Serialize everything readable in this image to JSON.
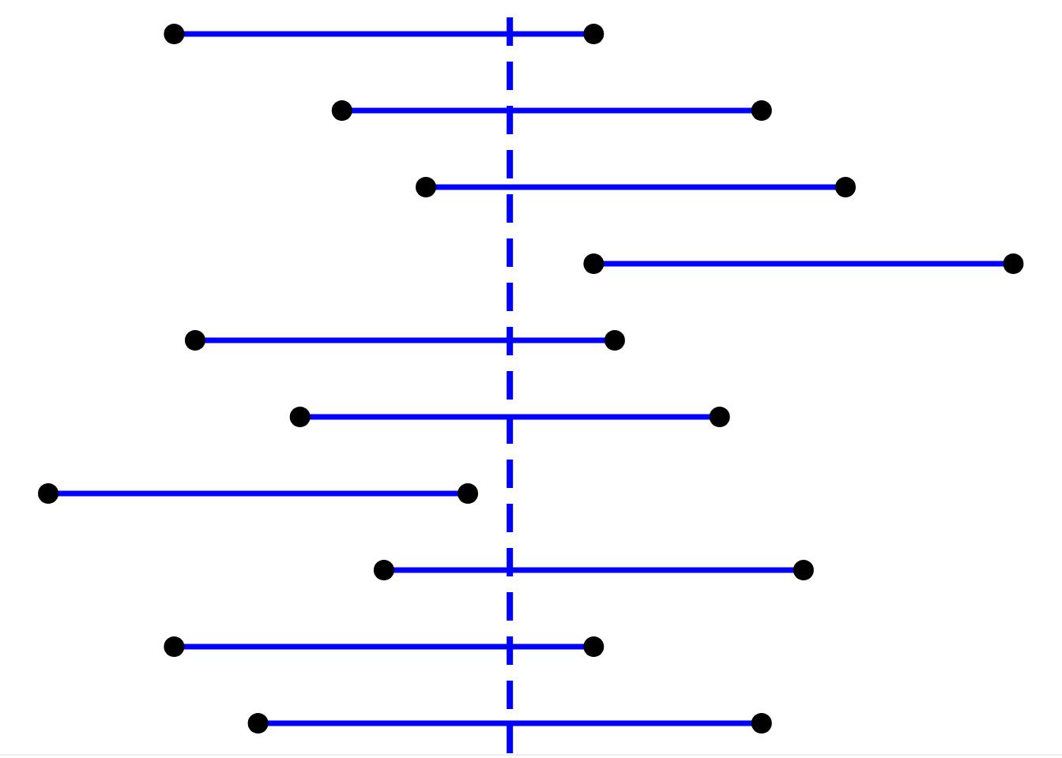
{
  "chart_data": {
    "type": "interval",
    "lower": [
      -8,
      -4,
      -2,
      2,
      -7.5,
      -5,
      -11,
      -3,
      -8,
      -6
    ],
    "upper": [
      2,
      6,
      8,
      12,
      2.5,
      5,
      -1,
      7,
      2,
      6
    ],
    "reference": 0,
    "color": "#0000ff",
    "xlim": [
      -12.15,
      13.16
    ],
    "tick_labels": false,
    "grid": false
  }
}
